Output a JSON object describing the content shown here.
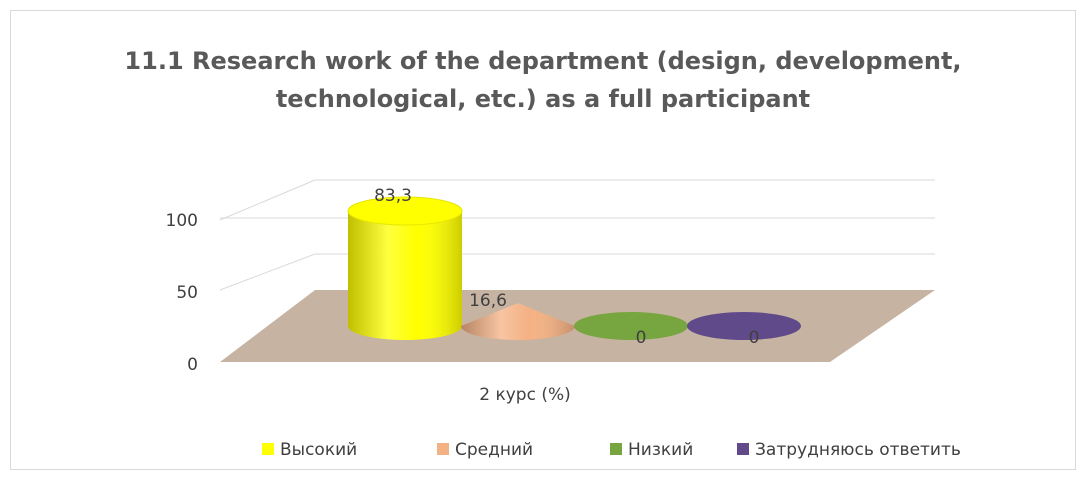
{
  "chart_data": {
    "type": "bar3d",
    "title": "11.1 Research work of the department (design, development, technological, etc.) as a full participant",
    "categories": [
      "2 курс (%)"
    ],
    "series": [
      {
        "name": "Высокий",
        "color": "#ffff00",
        "shape": "cylinder",
        "values": [
          83.3
        ],
        "value_labels": [
          "83,3"
        ]
      },
      {
        "name": "Средний",
        "color": "#f4b183",
        "shape": "cone",
        "values": [
          16.6
        ],
        "value_labels": [
          "16,6"
        ]
      },
      {
        "name": "Низкий",
        "color": "#77a53f",
        "shape": "cylinder",
        "values": [
          0
        ],
        "value_labels": [
          "0"
        ]
      },
      {
        "name": "Затрудняюсь ответить",
        "color": "#604a8a",
        "shape": "cylinder",
        "values": [
          0
        ],
        "value_labels": [
          "0"
        ]
      }
    ],
    "ylim": [
      0,
      100
    ],
    "yticks": [
      0,
      50,
      100
    ],
    "grid": true,
    "legend": "bottom"
  }
}
